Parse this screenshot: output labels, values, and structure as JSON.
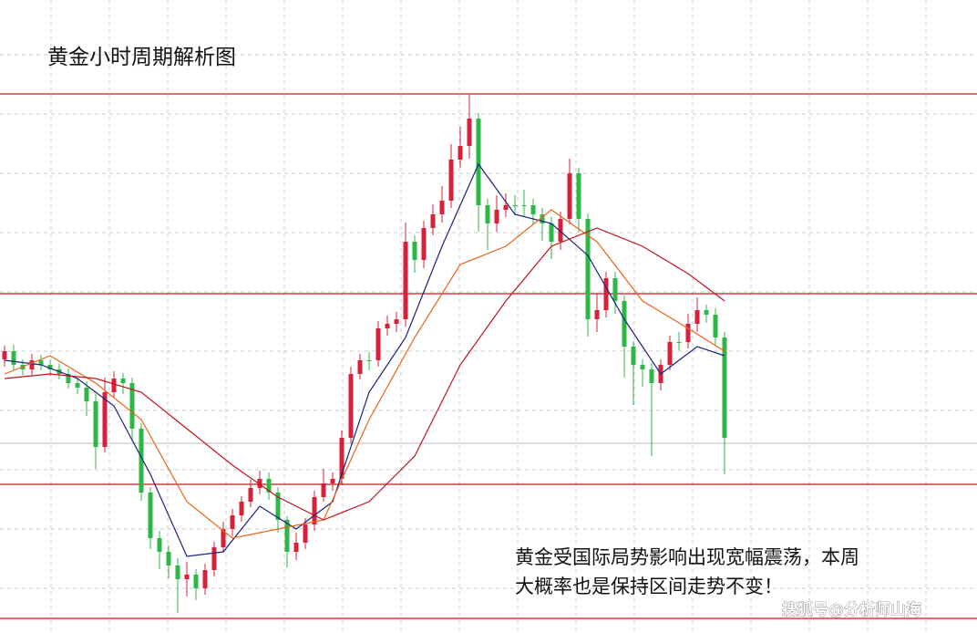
{
  "chart_data": {
    "type": "candlestick",
    "title": "黄金小时周期解析图",
    "annotations": [
      "黄金受国际局势影响出现宽幅震荡，本周",
      "大概率也是保持区间走势不变！"
    ],
    "watermark": "搜狐号@分析师山海",
    "ylim": [
      0,
      694
    ],
    "up_color": "#d8203a",
    "down_color": "#2cb845",
    "open": [
      300,
      309,
      294,
      289,
      299,
      294,
      289,
      284,
      274,
      269,
      254,
      204,
      264,
      279,
      274,
      224,
      154,
      104,
      89,
      74,
      59,
      64,
      49,
      69,
      94,
      114,
      129,
      144,
      159,
      169,
      154,
      124,
      89,
      99,
      119,
      149,
      164,
      169,
      214,
      284,
      299,
      299,
      334,
      339,
      344,
      429,
      409,
      444,
      459,
      474,
      519,
      534,
      564,
      469,
      449,
      464,
      469,
      469,
      469,
      459,
      449,
      429,
      454,
      504,
      454,
      344,
      354,
      389,
      364,
      314,
      294,
      289,
      274,
      294,
      319,
      319,
      339,
      354,
      349,
      324
    ],
    "high": [
      315,
      316,
      300,
      306,
      305,
      299,
      295,
      290,
      280,
      276,
      262,
      280,
      287,
      285,
      280,
      230,
      160,
      112,
      96,
      82,
      78,
      70,
      76,
      100,
      122,
      136,
      150,
      168,
      178,
      176,
      160,
      128,
      110,
      126,
      156,
      180,
      176,
      222,
      292,
      306,
      308,
      342,
      348,
      352,
      450,
      436,
      452,
      470,
      490,
      536,
      555,
      590,
      570,
      476,
      480,
      482,
      480,
      486,
      476,
      466,
      456,
      462,
      520,
      510,
      460,
      372,
      396,
      396,
      370,
      320,
      300,
      296,
      300,
      326,
      330,
      350,
      368,
      360,
      356,
      330
    ],
    "low": [
      292,
      288,
      283,
      283,
      288,
      282,
      278,
      268,
      262,
      238,
      180,
      198,
      258,
      262,
      210,
      145,
      92,
      70,
      60,
      22,
      40,
      36,
      42,
      62,
      88,
      106,
      122,
      138,
      152,
      146,
      110,
      72,
      80,
      92,
      112,
      144,
      156,
      162,
      208,
      278,
      288,
      292,
      326,
      330,
      336,
      395,
      400,
      436,
      450,
      466,
      510,
      520,
      440,
      420,
      440,
      456,
      458,
      456,
      448,
      430,
      410,
      420,
      448,
      440,
      325,
      330,
      346,
      350,
      280,
      250,
      270,
      194,
      266,
      288,
      310,
      312,
      330,
      340,
      316,
      174
    ],
    "close": [
      309,
      294,
      289,
      299,
      294,
      289,
      284,
      274,
      269,
      254,
      204,
      264,
      279,
      274,
      224,
      154,
      104,
      89,
      74,
      59,
      64,
      49,
      69,
      94,
      114,
      129,
      144,
      159,
      169,
      154,
      124,
      89,
      99,
      119,
      149,
      164,
      169,
      214,
      284,
      299,
      299,
      334,
      339,
      344,
      429,
      409,
      444,
      459,
      474,
      519,
      534,
      564,
      469,
      449,
      464,
      469,
      469,
      469,
      459,
      449,
      429,
      454,
      504,
      454,
      344,
      354,
      389,
      364,
      314,
      294,
      289,
      274,
      294,
      319,
      319,
      339,
      354,
      349,
      324,
      214
    ],
    "moving_averages": [
      {
        "color": "#1a237e",
        "x": [
          0,
          4,
          8,
          12,
          16,
          20,
          24,
          28,
          32,
          36,
          40,
          44,
          48,
          52,
          56,
          60,
          64,
          68,
          72,
          76,
          79
        ],
        "values": [
          299,
          294,
          279,
          249,
          174,
          84,
          89,
          139,
          114,
          144,
          264,
          324,
          424,
          514,
          459,
          449,
          414,
          344,
          284,
          314,
          304
        ]
      },
      {
        "color": "#e8651a",
        "x": [
          0,
          5,
          10,
          15,
          20,
          25,
          30,
          35,
          40,
          45,
          50,
          55,
          60,
          65,
          70,
          75,
          79
        ],
        "values": [
          284,
          304,
          274,
          234,
          144,
          104,
          114,
          124,
          234,
          324,
          404,
          424,
          464,
          429,
          364,
          334,
          309
        ]
      },
      {
        "color": "#c0141c",
        "x": [
          0,
          5,
          10,
          15,
          20,
          25,
          30,
          35,
          40,
          45,
          50,
          55,
          60,
          65,
          70,
          75,
          79
        ],
        "values": [
          279,
          284,
          279,
          264,
          224,
          184,
          149,
          124,
          144,
          194,
          294,
          364,
          424,
          444,
          424,
          394,
          364
        ]
      }
    ],
    "levels": [
      591,
      372,
      163,
      16
    ],
    "level_color": "#d0141c"
  }
}
